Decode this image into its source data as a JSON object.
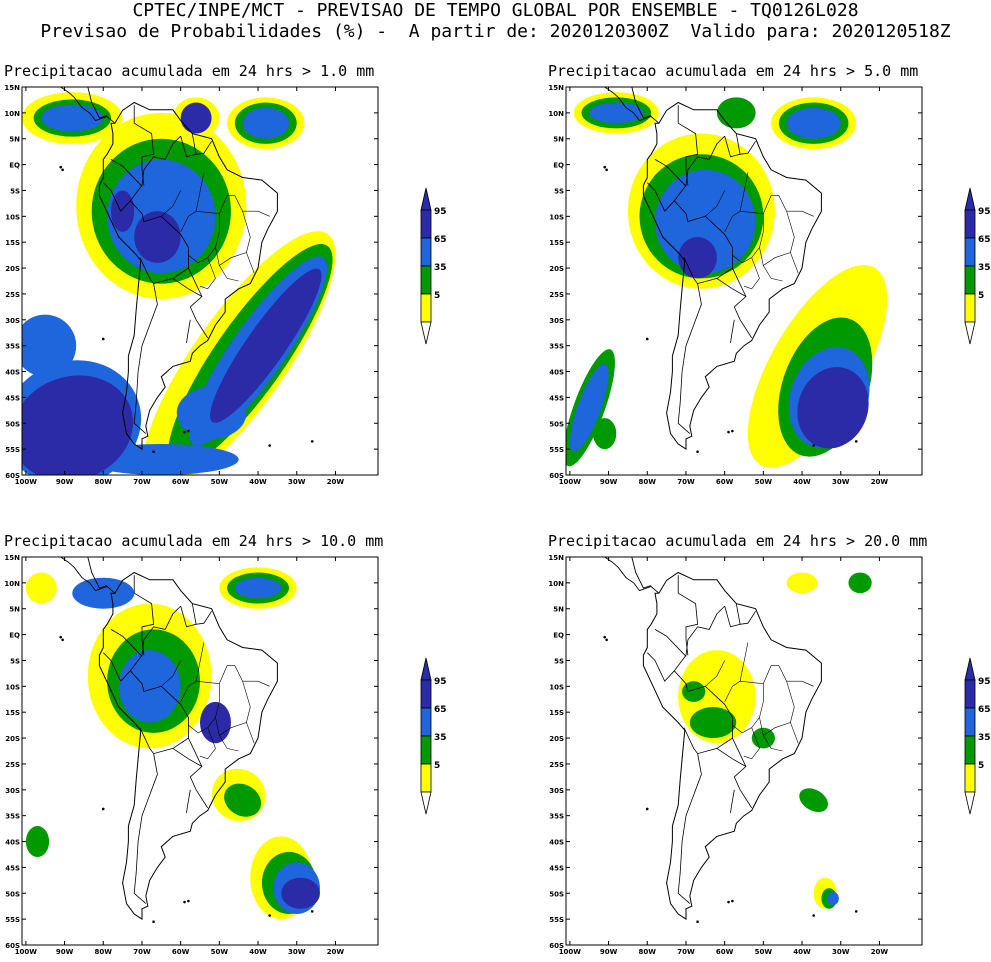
{
  "header": {
    "line1": "CPTEC/INPE/MCT - PREVISAO DE TEMPO GLOBAL POR ENSEMBLE - TQ0126L028",
    "line2": "Previsao de Probabilidades (%) -  A partir de: 2020120300Z  Valido para: 2020120518Z"
  },
  "colors": {
    "c5": "#ffff00",
    "c35": "#009900",
    "c65": "#1f66dd",
    "c95": "#2b2ba8"
  },
  "axes": {
    "lat_labels": [
      "15N",
      "10N",
      "5N",
      "EQ",
      "5S",
      "10S",
      "15S",
      "20S",
      "25S",
      "30S",
      "35S",
      "40S",
      "45S",
      "50S",
      "55S",
      "60S"
    ],
    "lon_labels": [
      "100W",
      "90W",
      "80W",
      "70W",
      "60W",
      "50W",
      "40W",
      "30W",
      "20W"
    ]
  },
  "colorbar": {
    "labels": [
      "95",
      "65",
      "35",
      "5"
    ]
  },
  "panels": [
    {
      "title": "Precipitacao acumulada em 24 hrs > 1.0 mm"
    },
    {
      "title": "Precipitacao acumulada em 24 hrs > 5.0 mm"
    },
    {
      "title": "Precipitacao acumulada em 24 hrs > 10.0 mm"
    },
    {
      "title": "Precipitacao acumulada em 24 hrs > 20.0 mm"
    }
  ]
}
